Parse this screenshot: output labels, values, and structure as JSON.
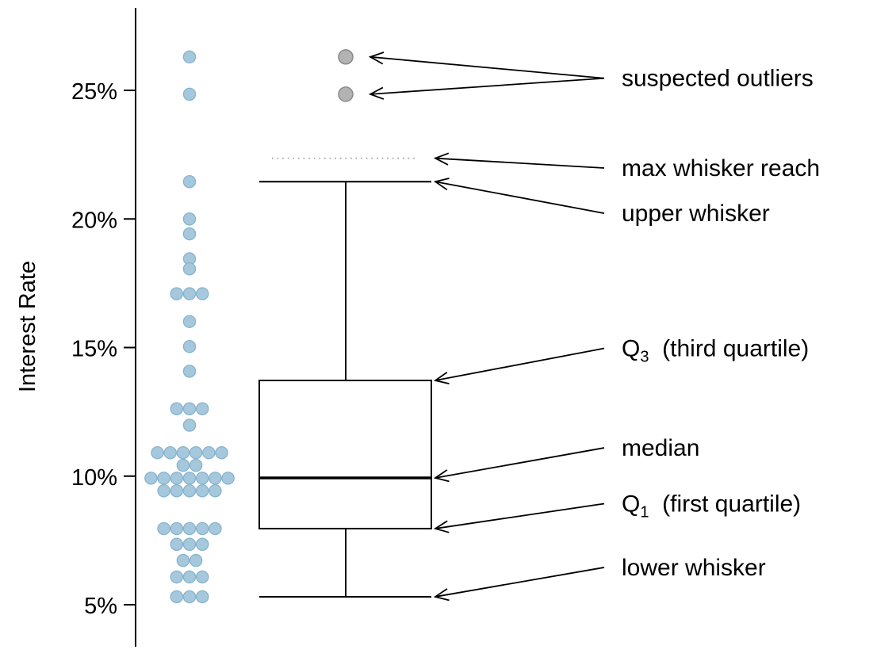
{
  "chart_data": {
    "type": "boxplot",
    "ylabel": "Interest Rate",
    "ylim": [
      3.5,
      28
    ],
    "yticks": [
      {
        "value": 5,
        "label": "5%"
      },
      {
        "value": 10,
        "label": "10%"
      },
      {
        "value": 15,
        "label": "15%"
      },
      {
        "value": 20,
        "label": "20%"
      },
      {
        "value": 25,
        "label": "25%"
      }
    ],
    "colors": {
      "dot_fill": "#a6c8dc",
      "dot_stroke": "#87b3cd",
      "outlier_fill": "#b3b3b3",
      "outlier_stroke": "#8a8a8a",
      "box_stroke": "#000000",
      "reach_dotted": "#999999"
    },
    "dot_values": [
      26.3,
      24.85,
      21.45,
      20.0,
      19.42,
      18.45,
      18.06,
      17.09,
      17.09,
      17.09,
      16.01,
      15.04,
      14.08,
      12.62,
      12.62,
      12.62,
      11.98,
      10.91,
      10.91,
      10.91,
      10.91,
      10.91,
      10.91,
      10.42,
      10.42,
      9.92,
      9.92,
      9.92,
      9.92,
      9.92,
      9.92,
      9.92,
      9.43,
      9.43,
      9.43,
      9.43,
      9.43,
      7.96,
      7.96,
      7.96,
      7.96,
      7.96,
      7.35,
      7.35,
      7.35,
      6.72,
      6.72,
      6.08,
      6.08,
      6.08,
      5.31,
      5.31,
      5.31
    ],
    "box": {
      "lower_whisker": 5.31,
      "q1": 7.96,
      "median": 9.93,
      "q3": 13.72,
      "upper_whisker": 21.45,
      "max_whisker_reach": 22.36,
      "outliers": [
        24.85,
        26.3
      ]
    },
    "annotations": [
      {
        "key": "suspected_outliers",
        "text": "suspected outliers",
        "targets": [
          26.3,
          24.85
        ],
        "label_value": 25.47
      },
      {
        "key": "max_whisker_reach",
        "text": "max whisker reach",
        "targets": [
          22.36
        ],
        "label_value": 21.98
      },
      {
        "key": "upper_whisker",
        "text": "upper whisker",
        "targets": [
          21.45
        ],
        "label_value": 20.22
      },
      {
        "key": "q3",
        "text": "Q",
        "sub": "3",
        "suffix": "  (third quartile)",
        "targets": [
          13.72
        ],
        "label_value": 14.97
      },
      {
        "key": "median",
        "text": "median",
        "targets": [
          9.93
        ],
        "label_value": 11.1
      },
      {
        "key": "q1",
        "text": "Q",
        "sub": "1",
        "suffix": "  (first quartile)",
        "targets": [
          7.96
        ],
        "label_value": 8.93
      },
      {
        "key": "lower_whisker",
        "text": "lower whisker",
        "targets": [
          5.31
        ],
        "label_value": 6.45
      }
    ]
  }
}
